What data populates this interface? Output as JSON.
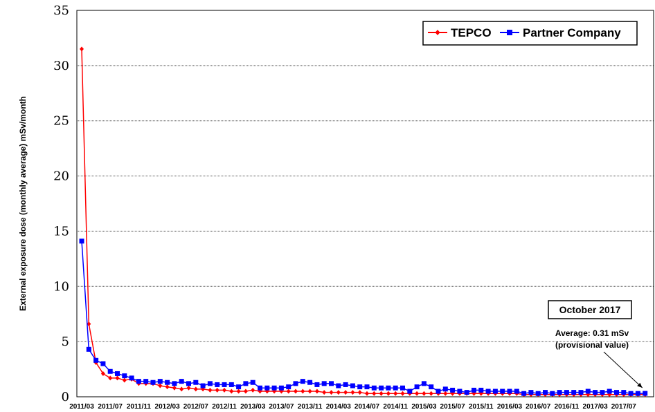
{
  "chart_data": {
    "type": "line",
    "title": "",
    "ylabel": "External exposure dose (monthly average) mSv/month",
    "xlabel": "",
    "ylim": [
      0,
      35
    ],
    "yticks": [
      "0",
      "5",
      "10",
      "15",
      "20",
      "25",
      "30",
      "35"
    ],
    "grid": "horizontal dotted",
    "legend_position": "top-right",
    "x_tick_labels": [
      "2011/03",
      "2011/07",
      "2011/11",
      "2012/03",
      "2012/07",
      "2012/11",
      "2013/03",
      "2013/07",
      "2013/11",
      "2014/03",
      "2014/07",
      "2014/11",
      "2015/03",
      "2015/07",
      "2015/11",
      "2016/03",
      "2016/07",
      "2016/11",
      "2017/03",
      "2017/07"
    ],
    "x_tick_indices": [
      0,
      4,
      8,
      12,
      16,
      20,
      24,
      28,
      32,
      36,
      40,
      44,
      48,
      52,
      56,
      60,
      64,
      68,
      72,
      76
    ],
    "x_start": "2011/03",
    "x_end": "2017/10",
    "series": [
      {
        "name": "TEPCO",
        "color": "#ff0000",
        "marker": "diamond",
        "values": [
          31.5,
          6.6,
          3.1,
          2.1,
          1.7,
          1.7,
          1.5,
          1.6,
          1.2,
          1.2,
          1.2,
          1.0,
          0.9,
          0.8,
          0.7,
          0.8,
          0.7,
          0.7,
          0.6,
          0.6,
          0.6,
          0.5,
          0.5,
          0.5,
          0.6,
          0.5,
          0.5,
          0.5,
          0.5,
          0.5,
          0.5,
          0.5,
          0.5,
          0.5,
          0.4,
          0.4,
          0.4,
          0.4,
          0.4,
          0.4,
          0.3,
          0.3,
          0.3,
          0.3,
          0.3,
          0.3,
          0.3,
          0.3,
          0.3,
          0.3,
          0.3,
          0.3,
          0.3,
          0.3,
          0.3,
          0.3,
          0.3,
          0.3,
          0.3,
          0.3,
          0.3,
          0.3,
          0.2,
          0.2,
          0.2,
          0.2,
          0.2,
          0.2,
          0.2,
          0.2,
          0.2,
          0.2,
          0.2,
          0.2,
          0.2,
          0.2,
          0.2,
          0.2,
          0.2,
          0.2
        ]
      },
      {
        "name": "Partner Company",
        "color": "#0000ff",
        "marker": "square",
        "values": [
          14.1,
          4.3,
          3.3,
          3.0,
          2.3,
          2.1,
          1.9,
          1.7,
          1.4,
          1.4,
          1.3,
          1.4,
          1.3,
          1.2,
          1.4,
          1.2,
          1.3,
          1.0,
          1.2,
          1.1,
          1.1,
          1.1,
          0.9,
          1.2,
          1.3,
          0.8,
          0.8,
          0.8,
          0.8,
          0.9,
          1.2,
          1.4,
          1.3,
          1.1,
          1.2,
          1.2,
          1.0,
          1.1,
          1.0,
          0.9,
          0.9,
          0.8,
          0.8,
          0.8,
          0.8,
          0.8,
          0.5,
          0.9,
          1.2,
          0.9,
          0.5,
          0.7,
          0.6,
          0.5,
          0.4,
          0.6,
          0.6,
          0.5,
          0.5,
          0.5,
          0.5,
          0.5,
          0.3,
          0.4,
          0.3,
          0.4,
          0.3,
          0.4,
          0.4,
          0.4,
          0.4,
          0.5,
          0.4,
          0.4,
          0.5,
          0.4,
          0.4,
          0.3,
          0.3,
          0.31
        ]
      }
    ],
    "annotation": {
      "title": "October  2017",
      "line1": "Average: 0.31 mSv",
      "line2": "(provisional value)"
    }
  }
}
